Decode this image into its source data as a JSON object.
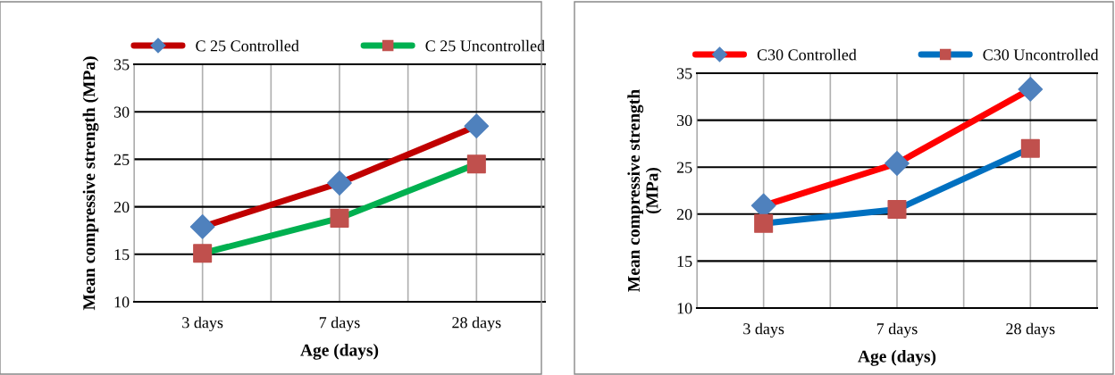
{
  "chart_data": [
    {
      "type": "line",
      "xlabel": "Age (days)",
      "ylabel": "Mean compressive strength (MPa)",
      "categories": [
        "3 days",
        "7 days",
        "28 days"
      ],
      "series": [
        {
          "name": "C 25 Controlled",
          "color": "#c00000",
          "marker": "diamond",
          "colors": [
            "#4f81bd",
            "#4f81bd",
            "#4f81bd"
          ],
          "values": [
            17.9,
            22.5,
            28.5
          ]
        },
        {
          "name": "C 25 Uncontrolled",
          "color": "#00b050",
          "marker": "square",
          "colors": [
            "#c0504d",
            "#c0504d",
            "#c0504d"
          ],
          "values": [
            15.1,
            18.8,
            24.5
          ]
        }
      ],
      "ylim": [
        10,
        35
      ],
      "yticks": [
        10,
        15,
        20,
        25,
        30,
        35
      ],
      "grid": true,
      "legend": "top"
    },
    {
      "type": "line",
      "xlabel": "Age (days)",
      "ylabel": "Mean compressive strength\n(MPa)",
      "categories": [
        "3 days",
        "7 days",
        "28 days"
      ],
      "series": [
        {
          "name": "C30 Controlled",
          "color": "#ff0000",
          "marker": "diamond",
          "colors": [
            "#4f81bd",
            "#4f81bd",
            "#4f81bd"
          ],
          "values": [
            20.9,
            25.4,
            33.3
          ]
        },
        {
          "name": "C30 Uncontrolled",
          "color": "#0070c0",
          "marker": "square",
          "colors": [
            "#c0504d",
            "#c0504d",
            "#c0504d"
          ],
          "values": [
            19.0,
            20.5,
            27.0
          ]
        }
      ],
      "ylim": [
        10,
        35
      ],
      "yticks": [
        10,
        15,
        20,
        25,
        30,
        35
      ],
      "grid": true,
      "legend": "top"
    }
  ]
}
